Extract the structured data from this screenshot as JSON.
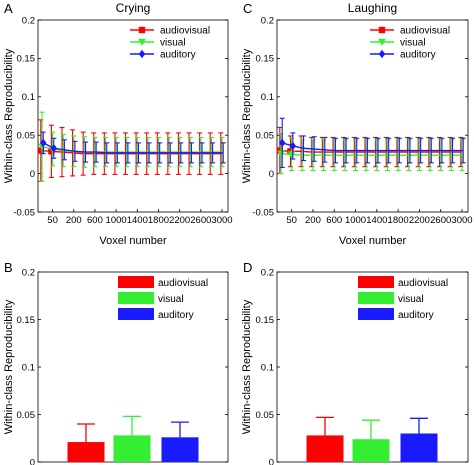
{
  "chart_data": [
    {
      "panel": "A",
      "type": "line",
      "title": "Crying",
      "xlabel": "Voxel number",
      "ylabel": "Within-class Reproducibility",
      "ylim": [
        -0.05,
        0.2
      ],
      "yticks": [
        -0.05,
        0,
        0.05,
        0.1,
        0.15,
        0.2
      ],
      "yticklabels": [
        "-0.05",
        "0",
        "0.05",
        "0.1",
        "0.15",
        "0.2"
      ],
      "xticklabels": [
        "50",
        "200",
        "600",
        "1000",
        "1400",
        "1800",
        "2200",
        "2600",
        "3000"
      ],
      "legend_position": "top-right",
      "grid": false,
      "x": [
        10,
        50,
        100,
        200,
        400,
        600,
        800,
        1000,
        1200,
        1400,
        1600,
        1800,
        2000,
        2200,
        2400,
        2600,
        2800,
        3000
      ],
      "series": [
        {
          "name": "audiovisual",
          "color": "#ff0000",
          "marker": "square",
          "values": [
            0.03,
            0.029,
            0.028,
            0.027,
            0.026,
            0.026,
            0.026,
            0.026,
            0.026,
            0.026,
            0.026,
            0.026,
            0.026,
            0.026,
            0.026,
            0.026,
            0.026,
            0.026
          ],
          "errors": [
            0.04,
            0.034,
            0.032,
            0.03,
            0.028,
            0.027,
            0.027,
            0.027,
            0.027,
            0.027,
            0.027,
            0.027,
            0.027,
            0.027,
            0.027,
            0.027,
            0.027,
            0.027
          ]
        },
        {
          "name": "visual",
          "color": "#33ee33",
          "marker": "triangle-down",
          "values": [
            0.035,
            0.032,
            0.03,
            0.029,
            0.028,
            0.028,
            0.028,
            0.028,
            0.028,
            0.028,
            0.028,
            0.028,
            0.028,
            0.028,
            0.028,
            0.028,
            0.028,
            0.028
          ],
          "errors": [
            0.045,
            0.022,
            0.021,
            0.02,
            0.02,
            0.019,
            0.019,
            0.019,
            0.019,
            0.019,
            0.019,
            0.019,
            0.019,
            0.019,
            0.019,
            0.019,
            0.019,
            0.019
          ]
        },
        {
          "name": "auditory",
          "color": "#1a1aff",
          "marker": "diamond",
          "values": [
            0.04,
            0.033,
            0.031,
            0.029,
            0.028,
            0.028,
            0.027,
            0.027,
            0.027,
            0.027,
            0.027,
            0.027,
            0.027,
            0.027,
            0.027,
            0.027,
            0.027,
            0.027
          ],
          "errors": [
            0.014,
            0.013,
            0.013,
            0.013,
            0.013,
            0.013,
            0.013,
            0.013,
            0.013,
            0.013,
            0.013,
            0.013,
            0.013,
            0.013,
            0.013,
            0.013,
            0.013,
            0.013
          ]
        }
      ]
    },
    {
      "panel": "C",
      "type": "line",
      "title": "Laughing",
      "xlabel": "Voxel number",
      "ylabel": "Within-class Reproducibility",
      "ylim": [
        -0.05,
        0.2
      ],
      "yticks": [
        -0.05,
        0,
        0.05,
        0.1,
        0.15,
        0.2
      ],
      "yticklabels": [
        "-0.05",
        "0",
        "0.05",
        "0.1",
        "0.15",
        "0.2"
      ],
      "xticklabels": [
        "50",
        "200",
        "600",
        "1000",
        "1400",
        "1800",
        "2200",
        "2600",
        "3000"
      ],
      "legend_position": "top-right",
      "grid": false,
      "x": [
        10,
        50,
        100,
        200,
        400,
        600,
        800,
        1000,
        1200,
        1400,
        1600,
        1800,
        2000,
        2200,
        2400,
        2600,
        2800,
        3000
      ],
      "series": [
        {
          "name": "audiovisual",
          "color": "#ff0000",
          "marker": "square",
          "values": [
            0.03,
            0.029,
            0.029,
            0.028,
            0.028,
            0.028,
            0.028,
            0.028,
            0.028,
            0.028,
            0.028,
            0.028,
            0.028,
            0.028,
            0.028,
            0.028,
            0.028,
            0.028
          ],
          "errors": [
            0.03,
            0.02,
            0.02,
            0.019,
            0.019,
            0.019,
            0.019,
            0.019,
            0.019,
            0.019,
            0.019,
            0.019,
            0.019,
            0.019,
            0.019,
            0.019,
            0.019,
            0.019
          ]
        },
        {
          "name": "visual",
          "color": "#33ee33",
          "marker": "triangle-down",
          "values": [
            0.026,
            0.025,
            0.024,
            0.024,
            0.024,
            0.024,
            0.024,
            0.024,
            0.024,
            0.024,
            0.024,
            0.024,
            0.024,
            0.024,
            0.024,
            0.024,
            0.024,
            0.024
          ],
          "errors": [
            0.026,
            0.021,
            0.02,
            0.02,
            0.02,
            0.02,
            0.02,
            0.02,
            0.02,
            0.02,
            0.02,
            0.02,
            0.02,
            0.02,
            0.02,
            0.02,
            0.02,
            0.02
          ]
        },
        {
          "name": "auditory",
          "color": "#1a1aff",
          "marker": "diamond",
          "values": [
            0.04,
            0.036,
            0.033,
            0.032,
            0.031,
            0.03,
            0.03,
            0.03,
            0.03,
            0.03,
            0.03,
            0.03,
            0.03,
            0.03,
            0.03,
            0.03,
            0.03,
            0.03
          ],
          "errors": [
            0.032,
            0.017,
            0.016,
            0.016,
            0.016,
            0.016,
            0.016,
            0.016,
            0.016,
            0.016,
            0.016,
            0.016,
            0.016,
            0.016,
            0.016,
            0.016,
            0.016,
            0.016
          ]
        }
      ]
    },
    {
      "panel": "B",
      "type": "bar",
      "ylabel": "Within-class Reproducibility",
      "ylim": [
        0,
        0.2
      ],
      "yticks": [
        0,
        0.05,
        0.1,
        0.15,
        0.2
      ],
      "yticklabels": [
        "0",
        "0.05",
        "0.1",
        "0.15",
        "0.2"
      ],
      "legend_position": "top-right",
      "categories": [
        "audiovisual",
        "visual",
        "auditory"
      ],
      "colors": [
        "#ff0000",
        "#33ee33",
        "#1a1aff"
      ],
      "values": [
        0.021,
        0.028,
        0.026
      ],
      "errors": [
        0.019,
        0.02,
        0.016
      ]
    },
    {
      "panel": "D",
      "type": "bar",
      "ylabel": "Within-class Reproducibility",
      "ylim": [
        0,
        0.2
      ],
      "yticks": [
        0,
        0.05,
        0.1,
        0.15,
        0.2
      ],
      "yticklabels": [
        "0",
        "0.05",
        "0.1",
        "0.15",
        "0.2"
      ],
      "legend_position": "top-right",
      "categories": [
        "audiovisual",
        "visual",
        "auditory"
      ],
      "colors": [
        "#ff0000",
        "#33ee33",
        "#1a1aff"
      ],
      "values": [
        0.028,
        0.024,
        0.03
      ],
      "errors": [
        0.019,
        0.02,
        0.016
      ]
    }
  ]
}
